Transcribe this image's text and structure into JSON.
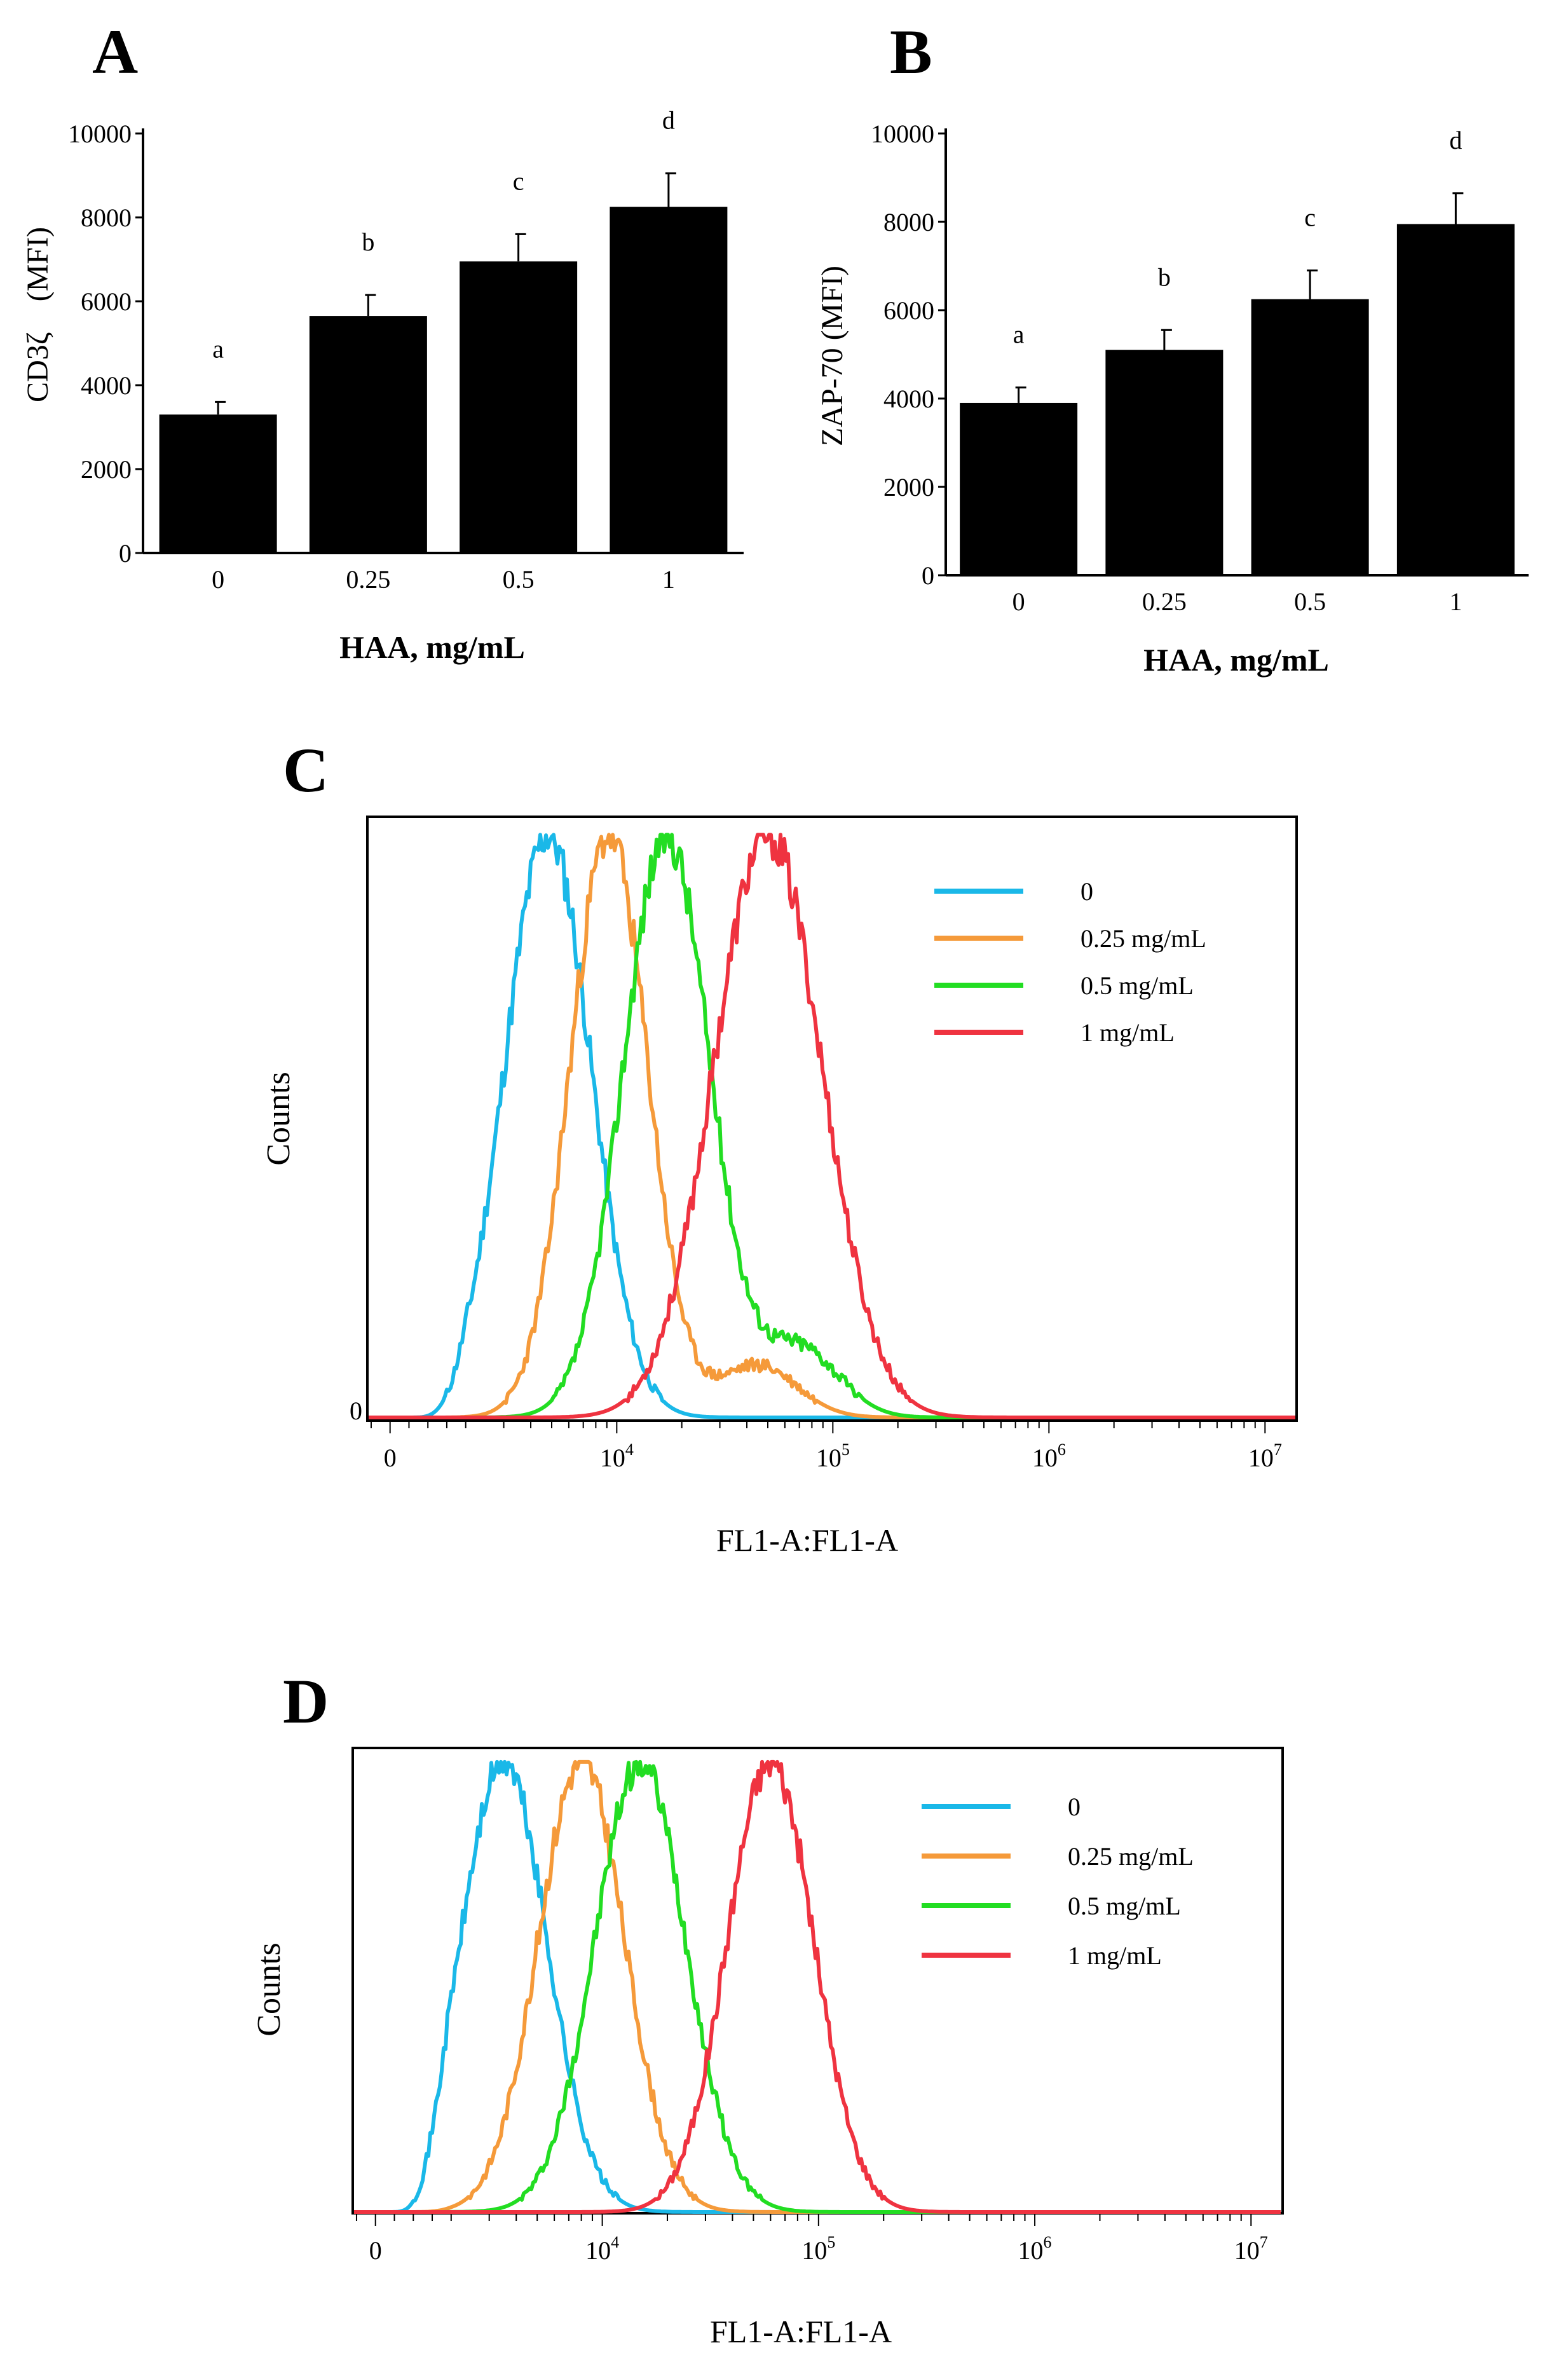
{
  "panels": {
    "A": {
      "label": "A"
    },
    "B": {
      "label": "B"
    },
    "C": {
      "label": "C"
    },
    "D": {
      "label": "D"
    }
  },
  "chart_data": [
    {
      "id": "A",
      "type": "bar",
      "title": "",
      "xlabel": "HAA, mg/mL",
      "ylabel": "CD3ζ　(MFI)",
      "categories": [
        "0",
        "0.25",
        "0.5",
        "1"
      ],
      "values": [
        3300,
        5650,
        6950,
        8250
      ],
      "errors": [
        300,
        500,
        650,
        800
      ],
      "significance_letters": [
        "a",
        "b",
        "c",
        "d"
      ],
      "ylim": [
        0,
        10000
      ],
      "yticks": [
        "0",
        "2000",
        "4000",
        "6000",
        "8000",
        "10000"
      ],
      "bar_color": "#000000",
      "grid": false
    },
    {
      "id": "B",
      "type": "bar",
      "title": "",
      "xlabel": "HAA, mg/mL",
      "ylabel": "ZAP-70 (MFI)",
      "categories": [
        "0",
        "0.25",
        "0.5",
        "1"
      ],
      "values": [
        3900,
        5100,
        6250,
        7950
      ],
      "errors": [
        350,
        450,
        650,
        700
      ],
      "significance_letters": [
        "a",
        "b",
        "c",
        "d"
      ],
      "ylim": [
        0,
        10000
      ],
      "yticks": [
        "0",
        "2000",
        "4000",
        "6000",
        "8000",
        "10000"
      ],
      "bar_color": "#000000",
      "grid": false
    },
    {
      "id": "C",
      "type": "line",
      "title": "",
      "xlabel": "FL1-A:FL1-A",
      "ylabel": "Counts",
      "xscale": "log",
      "xlim": [
        -600,
        14000000
      ],
      "xticks": [
        {
          "value": 0,
          "label": "0"
        },
        {
          "value": 10000,
          "base": "10",
          "exp": "4"
        },
        {
          "value": 100000,
          "base": "10",
          "exp": "5"
        },
        {
          "value": 1000000,
          "base": "10",
          "exp": "6"
        },
        {
          "value": 10000000,
          "base": "10",
          "exp": "7"
        }
      ],
      "ylim": [
        0,
        1
      ],
      "ytick_label": "0",
      "legend_position": "top-right",
      "series": [
        {
          "name": "0",
          "color": "#1ab8e8",
          "peak": 4800,
          "width": 0.2,
          "noise": 0.04,
          "seed": 11
        },
        {
          "name": "0.25 mg/mL",
          "color": "#f59a3a",
          "peak": 9200,
          "width": 0.18,
          "noise": 0.04,
          "seed": 23,
          "tail": {
            "at": 45000,
            "amp": 0.09,
            "width": 0.18
          }
        },
        {
          "name": "0.5 mg/mL",
          "color": "#22dd22",
          "peak": 17000,
          "width": 0.2,
          "noise": 0.04,
          "seed": 37,
          "tail": {
            "at": 70000,
            "amp": 0.12,
            "width": 0.18
          }
        },
        {
          "name": "1 mg/mL",
          "color": "#ef3340",
          "peak": 50000,
          "width": 0.25,
          "noise": 0.04,
          "seed": 53
        }
      ]
    },
    {
      "id": "D",
      "type": "line",
      "title": "",
      "xlabel": "FL1-A:FL1-A",
      "ylabel": "Counts",
      "xscale": "log",
      "xlim": [
        -600,
        14000000
      ],
      "xticks": [
        {
          "value": 0,
          "label": "0"
        },
        {
          "value": 10000,
          "base": "10",
          "exp": "4"
        },
        {
          "value": 100000,
          "base": "10",
          "exp": "5"
        },
        {
          "value": 1000000,
          "base": "10",
          "exp": "6"
        },
        {
          "value": 10000000,
          "base": "10",
          "exp": "7"
        }
      ],
      "ylim": [
        0,
        1
      ],
      "legend_position": "top-right",
      "series": [
        {
          "name": "0",
          "color": "#1ab8e8",
          "peak": 3500,
          "width": 0.2,
          "noise": 0.04,
          "seed": 71
        },
        {
          "name": "0.25 mg/mL",
          "color": "#f59a3a",
          "peak": 8000,
          "width": 0.2,
          "noise": 0.04,
          "seed": 83
        },
        {
          "name": "0.5 mg/mL",
          "color": "#22dd22",
          "peak": 15000,
          "width": 0.21,
          "noise": 0.04,
          "seed": 97
        },
        {
          "name": "1 mg/mL",
          "color": "#ef3340",
          "peak": 60000,
          "width": 0.2,
          "noise": 0.04,
          "seed": 101
        }
      ]
    }
  ]
}
